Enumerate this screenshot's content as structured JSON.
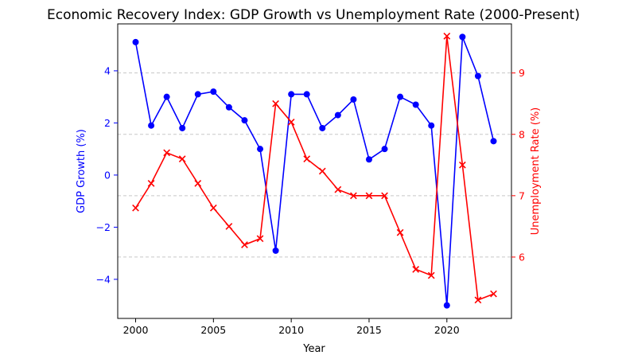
{
  "chart_data": {
    "type": "line",
    "title": "Economic Recovery Index: GDP Growth vs Unemployment Rate (2000-Present)",
    "xlabel": "Year",
    "ylabel_left": "GDP Growth (%)",
    "ylabel_right": "Unemployment Rate (%)",
    "x": [
      2000,
      2001,
      2002,
      2003,
      2004,
      2005,
      2006,
      2007,
      2008,
      2009,
      2010,
      2011,
      2012,
      2013,
      2014,
      2015,
      2016,
      2017,
      2018,
      2019,
      2020,
      2021,
      2022,
      2023
    ],
    "xlim": [
      1998.85,
      2024.15
    ],
    "x_ticks": [
      2000,
      2005,
      2010,
      2015,
      2020
    ],
    "x_tick_labels": [
      "2000",
      "2005",
      "2010",
      "2015",
      "2020"
    ],
    "series": [
      {
        "axis": "left",
        "color": "#0000ff",
        "marker": "circle",
        "values": [
          5.1,
          1.9,
          3.0,
          1.8,
          3.1,
          3.2,
          2.6,
          2.1,
          1.0,
          -2.9,
          3.1,
          3.1,
          1.8,
          2.3,
          2.9,
          0.6,
          1.0,
          3.0,
          2.7,
          1.9,
          -5.0,
          5.3,
          3.8,
          1.3
        ]
      },
      {
        "axis": "right",
        "color": "#ff0000",
        "marker": "x",
        "values": [
          6.8,
          7.2,
          7.7,
          7.6,
          7.2,
          6.8,
          6.5,
          6.2,
          6.3,
          8.5,
          8.2,
          7.6,
          7.4,
          7.1,
          7.0,
          7.0,
          7.0,
          6.4,
          5.8,
          5.7,
          9.6,
          7.5,
          5.3,
          5.4
        ]
      }
    ],
    "ylim_left": [
      -5.5,
      5.8
    ],
    "y_ticks_left": [
      -4,
      -2,
      0,
      2,
      4
    ],
    "y_tick_labels_left": [
      "−4",
      "−2",
      "0",
      "2",
      "4"
    ],
    "ylim_right": [
      5.0,
      9.8
    ],
    "y_ticks_right": [
      6,
      7,
      8,
      9
    ],
    "y_tick_labels_right": [
      "6",
      "7",
      "8",
      "9"
    ],
    "grid": "horizontal dashed on right axis",
    "grid_color": "#c8c8c8",
    "left_axis_color": "#0000ff",
    "right_axis_color": "#ff0000"
  }
}
